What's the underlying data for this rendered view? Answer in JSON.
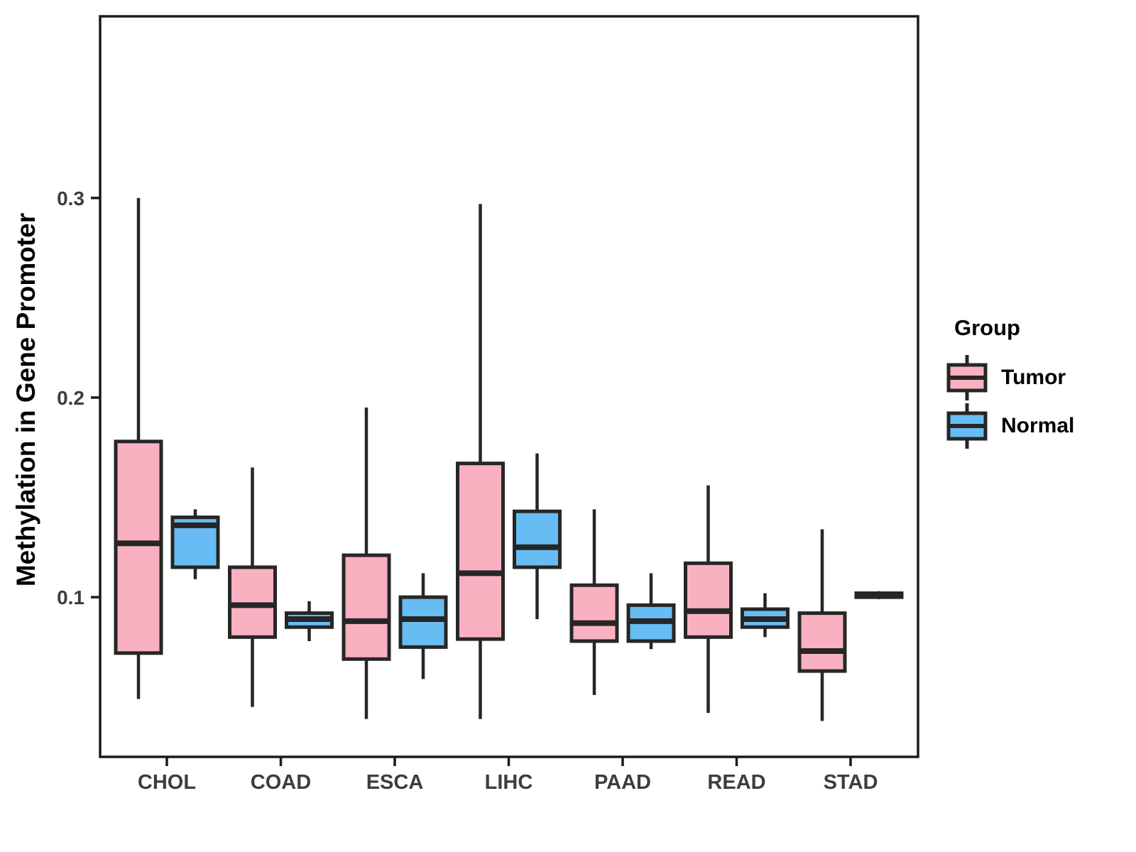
{
  "chart_data": {
    "type": "boxplot",
    "title": "",
    "xlabel": "",
    "ylabel": "Methylation in Gene Promoter",
    "categories": [
      "CHOL",
      "COAD",
      "ESCA",
      "LIHC",
      "PAAD",
      "READ",
      "STAD"
    ],
    "y_ticks": [
      {
        "label": "0.1",
        "value": 0.1
      },
      {
        "label": "0.2",
        "value": 0.2
      },
      {
        "label": "0.3",
        "value": 0.3
      }
    ],
    "ylim": [
      0.02,
      0.391
    ],
    "grid": "off",
    "legend": {
      "title": "Group",
      "position": "right",
      "entries": [
        {
          "label": "Tumor",
          "color": "#F9B1C1"
        },
        {
          "label": "Normal",
          "color": "#67BDF3"
        }
      ]
    },
    "series": [
      {
        "name": "Tumor",
        "color": "#F9B1C1",
        "boxes": [
          {
            "category": "CHOL",
            "low": 0.049,
            "q1": 0.072,
            "median": 0.127,
            "q3": 0.178,
            "high": 0.3
          },
          {
            "category": "COAD",
            "low": 0.045,
            "q1": 0.08,
            "median": 0.096,
            "q3": 0.115,
            "high": 0.165
          },
          {
            "category": "ESCA",
            "low": 0.039,
            "q1": 0.069,
            "median": 0.088,
            "q3": 0.121,
            "high": 0.195
          },
          {
            "category": "LIHC",
            "low": 0.039,
            "q1": 0.079,
            "median": 0.112,
            "q3": 0.167,
            "high": 0.297
          },
          {
            "category": "PAAD",
            "low": 0.051,
            "q1": 0.078,
            "median": 0.087,
            "q3": 0.106,
            "high": 0.144
          },
          {
            "category": "READ",
            "low": 0.042,
            "q1": 0.08,
            "median": 0.093,
            "q3": 0.117,
            "high": 0.156
          },
          {
            "category": "STAD",
            "low": 0.038,
            "q1": 0.063,
            "median": 0.073,
            "q3": 0.092,
            "high": 0.134
          }
        ]
      },
      {
        "name": "Normal",
        "color": "#67BDF3",
        "boxes": [
          {
            "category": "CHOL",
            "low": 0.109,
            "q1": 0.115,
            "median": 0.136,
            "q3": 0.14,
            "high": 0.144
          },
          {
            "category": "COAD",
            "low": 0.078,
            "q1": 0.085,
            "median": 0.089,
            "q3": 0.092,
            "high": 0.098
          },
          {
            "category": "ESCA",
            "low": 0.059,
            "q1": 0.075,
            "median": 0.089,
            "q3": 0.1,
            "high": 0.112
          },
          {
            "category": "LIHC",
            "low": 0.089,
            "q1": 0.115,
            "median": 0.125,
            "q3": 0.143,
            "high": 0.172
          },
          {
            "category": "PAAD",
            "low": 0.074,
            "q1": 0.078,
            "median": 0.088,
            "q3": 0.096,
            "high": 0.112
          },
          {
            "category": "READ",
            "low": 0.08,
            "q1": 0.085,
            "median": 0.089,
            "q3": 0.094,
            "high": 0.102
          },
          {
            "category": "STAD",
            "low": 0.099,
            "q1": 0.1,
            "median": 0.101,
            "q3": 0.102,
            "high": 0.103
          }
        ]
      }
    ],
    "style": {
      "stroke_color": "#262626",
      "panel_border_color": "#1a1a1a",
      "tick_label_color": "#3d3d3d",
      "background": "#ffffff"
    }
  }
}
